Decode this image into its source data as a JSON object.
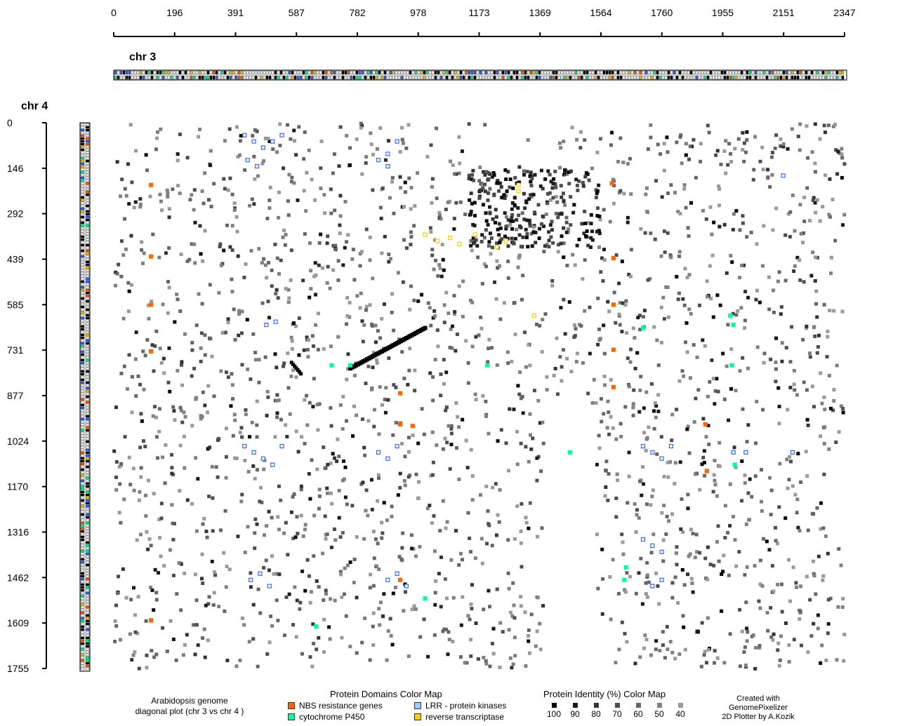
{
  "chart_data": {
    "type": "scatter",
    "x_chromosome": "chr 3",
    "y_chromosome": "chr 4",
    "xlim": [
      0,
      2347
    ],
    "ylim": [
      0,
      1755
    ],
    "x_ticks": [
      "0",
      "196",
      "391",
      "587",
      "782",
      "978",
      "1173",
      "1369",
      "1564",
      "1760",
      "1955",
      "2151",
      "2347"
    ],
    "y_ticks": [
      "0",
      "146",
      "292",
      "439",
      "585",
      "731",
      "877",
      "1024",
      "1170",
      "1316",
      "1462",
      "1609",
      "1755"
    ],
    "series": [
      {
        "name": "NBS resistance genes",
        "color": "#ff6600",
        "x": [
          120,
          120,
          120,
          120,
          920,
          920,
          920,
          1600,
          1605,
          1605,
          1605,
          1605,
          1900,
          1905,
          120,
          960
        ],
        "y": [
          200,
          430,
          585,
          735,
          870,
          970,
          1470,
          195,
          435,
          585,
          730,
          850,
          970,
          1120,
          1600,
          975
        ]
      },
      {
        "name": "cytochrome P450",
        "color": "#00ff99",
        "x": [
          700,
          760,
          1200,
          1700,
          1980,
          1985,
          1990,
          1995,
          1465,
          1000,
          1645,
          1640,
          650
        ],
        "y": [
          780,
          780,
          780,
          660,
          620,
          780,
          650,
          1100,
          1060,
          1530,
          1430,
          1470,
          1620
        ]
      },
      {
        "name": "LRR - protein kinases",
        "color": "#3366ff",
        "x": [
          420,
          450,
          480,
          510,
          540,
          430,
          460,
          490,
          520,
          880,
          910,
          850,
          880,
          420,
          450,
          480,
          510,
          540,
          850,
          880,
          910,
          1700,
          1730,
          1760,
          1790,
          1700,
          1730,
          1760,
          1990,
          2030,
          2150,
          2180,
          440,
          470,
          500,
          880,
          910,
          940,
          1730,
          1760
        ],
        "y": [
          40,
          60,
          80,
          60,
          40,
          120,
          140,
          650,
          640,
          100,
          60,
          120,
          140,
          1040,
          1060,
          1080,
          1100,
          1040,
          1060,
          1080,
          1040,
          1040,
          1060,
          1080,
          1040,
          1340,
          1360,
          1380,
          1060,
          1060,
          170,
          1060,
          1470,
          1450,
          1490,
          1470,
          1450,
          1490,
          1490,
          1470
        ]
      },
      {
        "name": "reverse transcriptase",
        "color": "#ffcc00",
        "x": [
          1000,
          1040,
          1080,
          1110,
          1160,
          1230,
          1260,
          1300,
          1350,
          1300
        ],
        "y": [
          360,
          380,
          370,
          390,
          360,
          400,
          380,
          220,
          620,
          200
        ]
      }
    ],
    "legend_domains_title": "Protein Domains Color Map",
    "legend_identity_title": "Protein Identity (%) Color Map",
    "identity_levels": [
      {
        "label": "100",
        "color": "#000000"
      },
      {
        "label": "90",
        "color": "#1a1a1a"
      },
      {
        "label": "80",
        "color": "#333333"
      },
      {
        "label": "70",
        "color": "#4d4d4d"
      },
      {
        "label": "60",
        "color": "#666666"
      },
      {
        "label": "50",
        "color": "#808080"
      },
      {
        "label": "40",
        "color": "#999999"
      }
    ],
    "caption_lines": [
      "Arabidopsis genome",
      "diagonal plot (chr 3 vs chr 4 )"
    ],
    "credit_lines": [
      "Created with",
      "GenomePixelizer",
      "2D Plotter by A.Kozik"
    ]
  }
}
